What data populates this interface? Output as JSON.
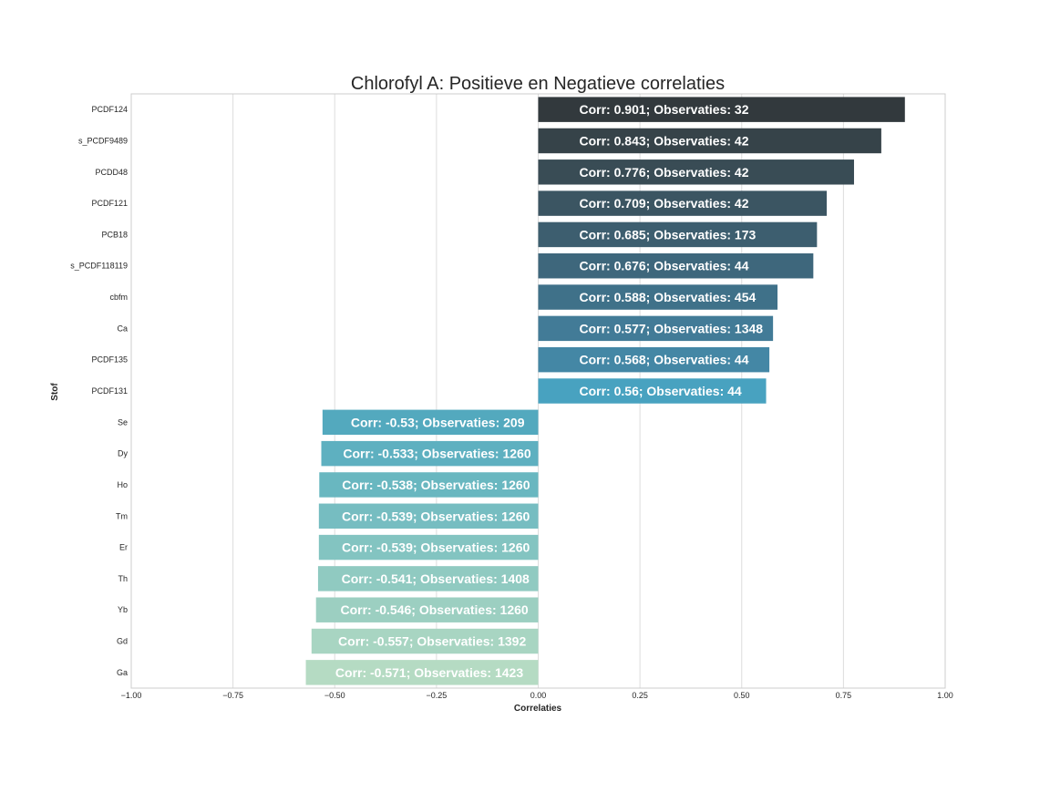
{
  "chart_data": {
    "type": "bar",
    "orientation": "horizontal",
    "title": "Chlorofyl A: Positieve en Negatieve correlaties",
    "xlabel": "Correlaties",
    "ylabel": "Stof",
    "xlim": [
      -1.0,
      1.0
    ],
    "xticks": [
      "−1.00",
      "−0.75",
      "−0.50",
      "−0.25",
      "0.00",
      "0.25",
      "0.50",
      "0.75",
      "1.00"
    ],
    "grid": true,
    "categories": [
      "PCDF124",
      "s_PCDF9489",
      "PCDD48",
      "PCDF121",
      "PCB18",
      "s_PCDF118119",
      "cbfm",
      "Ca",
      "PCDF135",
      "PCDF131",
      "Se",
      "Dy",
      "Ho",
      "Tm",
      "Er",
      "Th",
      "Yb",
      "Gd",
      "Ga"
    ],
    "values": [
      0.901,
      0.843,
      0.776,
      0.709,
      0.685,
      0.676,
      0.588,
      0.577,
      0.568,
      0.56,
      -0.53,
      -0.533,
      -0.538,
      -0.539,
      -0.539,
      -0.541,
      -0.546,
      -0.557,
      -0.571
    ],
    "observations": [
      32,
      42,
      42,
      42,
      173,
      44,
      454,
      1348,
      44,
      44,
      209,
      1260,
      1260,
      1260,
      1260,
      1408,
      1260,
      1392,
      1423
    ],
    "data_labels": [
      "Corr: 0.901; Observaties: 32",
      "Corr: 0.843; Observaties: 42",
      "Corr: 0.776; Observaties: 42",
      "Corr: 0.709; Observaties: 42",
      "Corr: 0.685; Observaties: 173",
      "Corr: 0.676; Observaties: 44",
      "Corr: 0.588; Observaties: 454",
      "Corr: 0.577; Observaties: 1348",
      "Corr: 0.568; Observaties: 44",
      "Corr: 0.56; Observaties: 44",
      "Corr: -0.53; Observaties: 209",
      "Corr: -0.533; Observaties: 1260",
      "Corr: -0.538; Observaties: 1260",
      "Corr: -0.539; Observaties: 1260",
      "Corr: -0.539; Observaties: 1260",
      "Corr: -0.541; Observaties: 1408",
      "Corr: -0.546; Observaties: 1260",
      "Corr: -0.557; Observaties: 1392",
      "Corr: -0.571; Observaties: 1423"
    ],
    "colors": [
      "#32393d",
      "#364349",
      "#394c55",
      "#3b5562",
      "#3d5e6f",
      "#3e677c",
      "#3f7189",
      "#427b97",
      "#4487a5",
      "#48a2c0",
      "#53a9be",
      "#5eb0c0",
      "#69b7c0",
      "#76bdc1",
      "#83c4c1",
      "#90cac1",
      "#9ccfc1",
      "#a8d5c2",
      "#b5dbc3"
    ]
  }
}
